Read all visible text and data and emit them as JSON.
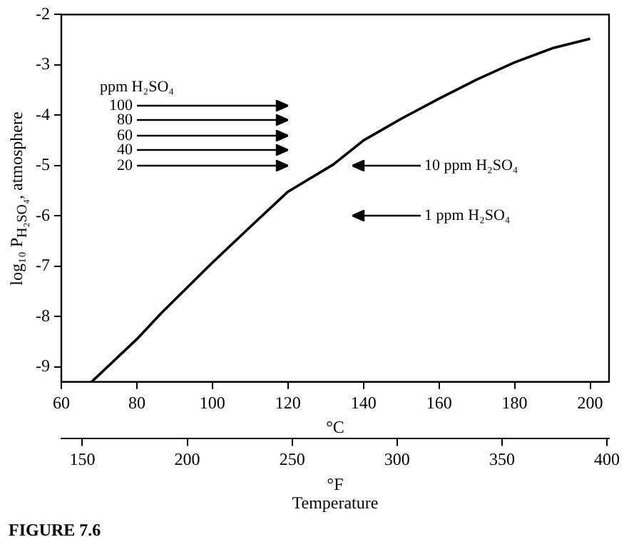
{
  "chart_data": {
    "type": "line",
    "xlabel": "°C",
    "x2label": "°F",
    "ylabel": "log₁₀ P$_{H₂SO₄}$, atmosphere",
    "xlim": [
      60,
      205
    ],
    "xticks": [
      60,
      80,
      100,
      120,
      140,
      160,
      180,
      200
    ],
    "x2lim": [
      140,
      401
    ],
    "x2ticks": [
      150,
      200,
      250,
      300,
      350,
      400
    ],
    "ylim": [
      -9.3,
      -2
    ],
    "yticks": [
      -9,
      -8,
      -7,
      -6,
      -5,
      -4,
      -3,
      -2
    ],
    "series": [
      {
        "color": "#000000",
        "x": [
          68,
          80,
          86.5,
          100,
          110,
          120,
          132,
          140,
          150,
          160,
          170,
          180,
          190,
          200
        ],
        "values": [
          -9.3,
          -8.45,
          -7.93,
          -6.93,
          -6.22,
          -5.52,
          -4.98,
          -4.5,
          -4.07,
          -3.67,
          -3.29,
          -2.95,
          -2.67,
          -2.48
        ]
      }
    ],
    "marker": "none",
    "grid": false,
    "legend": false,
    "annotations": [
      "10 ppm H₂SO₄",
      "1 ppm H₂SO₄",
      "ppm H₂SO₄",
      "100",
      "80",
      "60",
      "40",
      "20",
      "Temperature",
      "FIGURE 7.6"
    ]
  }
}
